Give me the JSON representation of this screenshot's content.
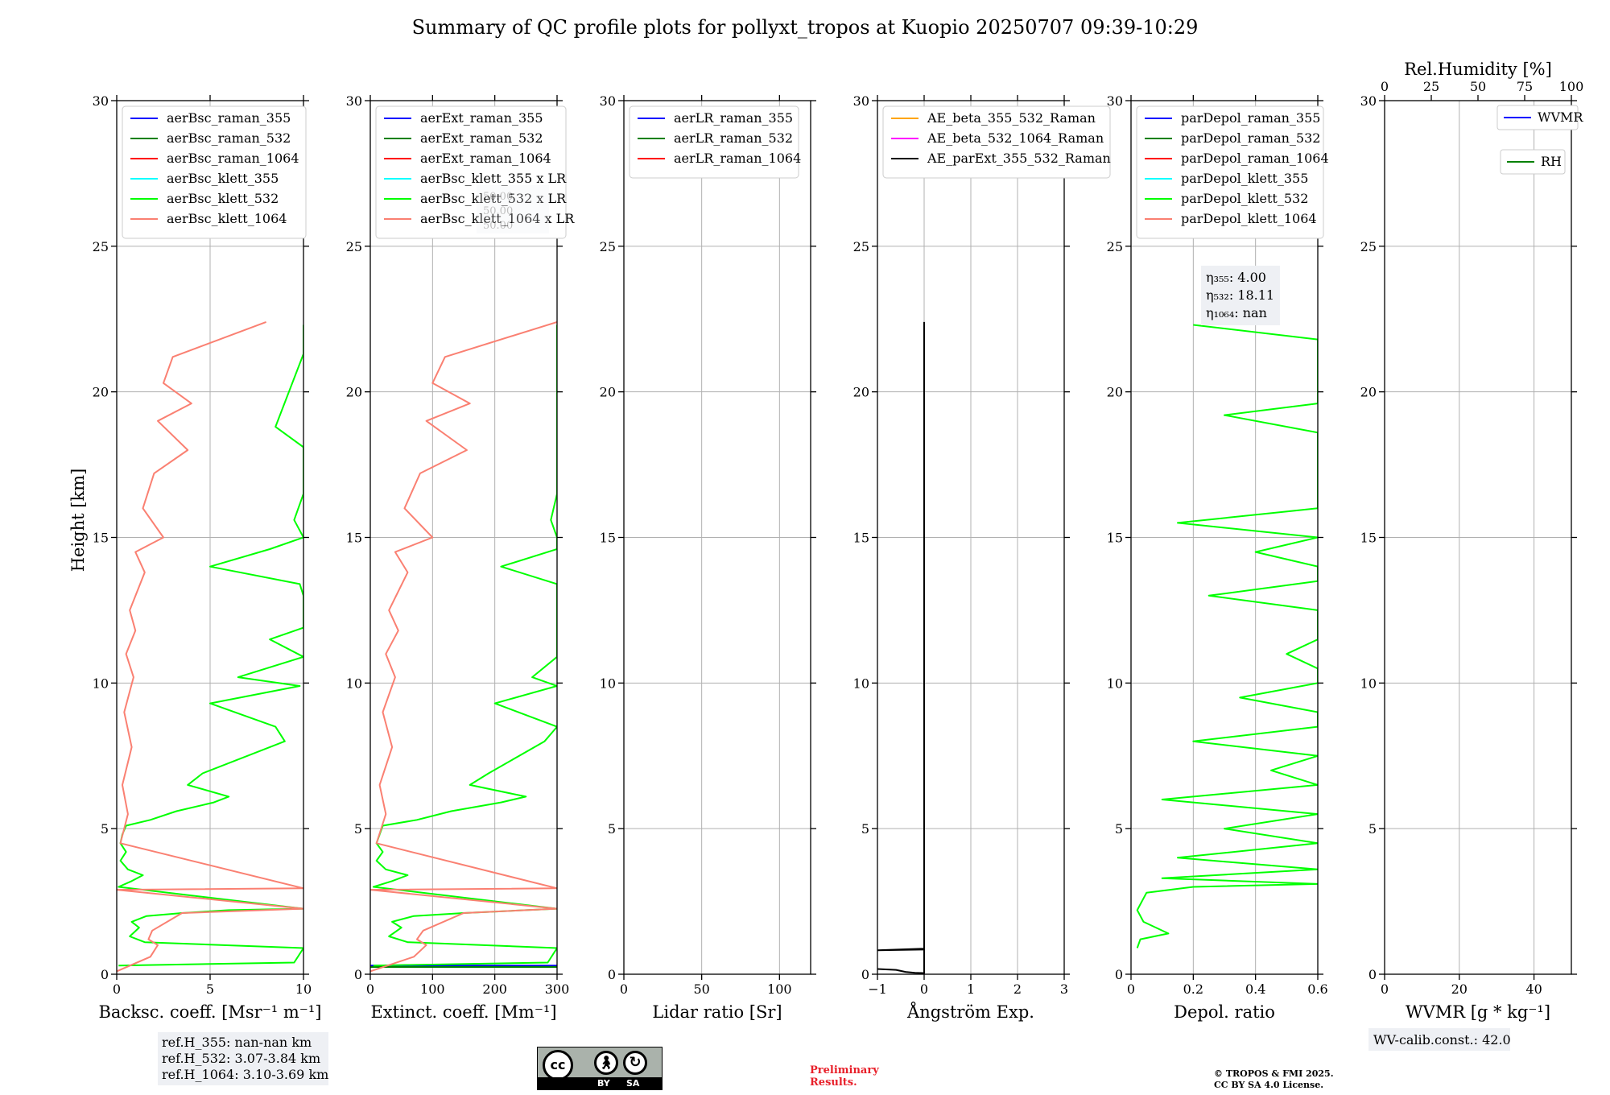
{
  "title": "Summary of QC profile plots for pollyxt_tropos at Kuopio 20250707 09:39-10:29",
  "ylabel": "Height [km]",
  "colors": {
    "raman_355": "#0000ff",
    "raman_532": "#008000",
    "raman_1064": "#ff0000",
    "klett_355": "#00ffff",
    "klett_532": "#00ff00",
    "klett_1064": "#fa8072",
    "ae_1": "#ffa500",
    "ae_2": "#ff00ff",
    "ae_3": "#000000",
    "wvmr": "#0000ff",
    "rh": "#008000",
    "grid": "#b0b0b0",
    "annot_bg": "#eef0f4"
  },
  "chart_data": [
    {
      "type": "line",
      "xlabel": "Backsc. coeff. [Msr⁻¹ m⁻¹]",
      "ylabel": "Height [km]",
      "xlim": [
        0,
        10
      ],
      "ylim": [
        0,
        30
      ],
      "grid": true,
      "legend": "top",
      "xticks": [
        0,
        5,
        10
      ],
      "yticks": [
        0,
        5,
        10,
        15,
        20,
        25,
        30
      ],
      "series": [
        {
          "name": "aerBsc_raman_355",
          "color": "#0000ff",
          "x": [],
          "y": []
        },
        {
          "name": "aerBsc_raman_532",
          "color": "#008000",
          "x": [],
          "y": []
        },
        {
          "name": "aerBsc_raman_1064",
          "color": "#ff0000",
          "x": [],
          "y": []
        },
        {
          "name": "aerBsc_klett_355",
          "color": "#00ffff",
          "x": [],
          "y": []
        },
        {
          "name": "aerBsc_klett_532",
          "color": "#00ff00",
          "x": [
            0.1,
            9.5,
            10,
            1.5,
            0.7,
            1.2,
            0.8,
            1.6,
            3.5,
            6.0,
            10.0,
            0.1,
            0.8,
            1.4,
            0.6,
            0.2,
            0.5,
            0.2,
            0.3,
            0.5,
            1.8,
            3.2,
            5.2,
            6.0,
            3.8,
            4.6,
            9.0,
            8.5,
            5.0,
            9.8,
            6.5,
            10.0,
            8.2,
            10.0,
            10.0,
            10.0,
            9.8,
            5.0,
            8.2,
            10.0,
            9.5,
            10.0,
            10.0,
            10.0,
            8.5,
            10.0,
            10.0
          ],
          "y": [
            0.3,
            0.4,
            0.9,
            1.1,
            1.3,
            1.6,
            1.8,
            2.0,
            2.1,
            2.2,
            2.25,
            3.0,
            3.2,
            3.4,
            3.6,
            3.9,
            4.2,
            4.5,
            4.8,
            5.1,
            5.3,
            5.6,
            5.9,
            6.1,
            6.5,
            6.9,
            8.0,
            8.5,
            9.3,
            9.9,
            10.2,
            10.9,
            11.5,
            11.9,
            12.4,
            13.0,
            13.4,
            14.0,
            14.6,
            15.0,
            15.6,
            16.5,
            17.0,
            18.1,
            18.8,
            21.3,
            22.3
          ]
        },
        {
          "name": "aerBsc_klett_1064",
          "color": "#fa8072",
          "x": [
            0.0,
            1.8,
            2.2,
            1.7,
            1.9,
            3.5,
            10.0,
            0.0,
            10.0,
            0.2,
            0.6,
            0.3,
            0.8,
            0.4,
            0.9,
            0.5,
            1.0,
            0.7,
            1.5,
            1.0,
            2.5,
            1.4,
            2.0,
            3.8,
            2.2,
            4.0,
            2.5,
            3.0,
            8.0
          ],
          "y": [
            0.1,
            0.6,
            1.0,
            1.2,
            1.5,
            2.1,
            2.25,
            2.9,
            2.95,
            4.5,
            5.5,
            6.5,
            7.8,
            9.0,
            10.2,
            11.0,
            11.8,
            12.5,
            13.8,
            14.5,
            15.0,
            16.0,
            17.2,
            18.0,
            19.0,
            19.6,
            20.3,
            21.2,
            22.4
          ]
        }
      ]
    },
    {
      "type": "line",
      "xlabel": "Extinct. coeff. [Mm⁻¹]",
      "xlim": [
        0,
        300
      ],
      "ylim": [
        0,
        30
      ],
      "grid": true,
      "legend": "top",
      "xticks": [
        0,
        100,
        200,
        300
      ],
      "yticks": [
        0,
        5,
        10,
        15,
        20,
        25,
        30
      ],
      "series": [
        {
          "name": "aerExt_raman_355",
          "color": "#0000ff",
          "x": [
            0,
            300
          ],
          "y": [
            0.3,
            0.3
          ]
        },
        {
          "name": "aerExt_raman_532",
          "color": "#008000",
          "x": [
            0,
            300
          ],
          "y": [
            0.25,
            0.25
          ]
        },
        {
          "name": "aerExt_raman_1064",
          "color": "#ff0000",
          "x": [],
          "y": []
        },
        {
          "name": "aerBsc_klett_355 x LR",
          "color": "#00ffff",
          "x": [],
          "y": []
        },
        {
          "name": "aerBsc_klett_532 x LR",
          "color": "#00ff00",
          "x": [
            5,
            285,
            300,
            60,
            30,
            50,
            35,
            70,
            150,
            250,
            300,
            5,
            35,
            60,
            25,
            10,
            20,
            10,
            15,
            20,
            75,
            130,
            210,
            250,
            160,
            190,
            280,
            300,
            200,
            300,
            260,
            300,
            300,
            300,
            300,
            300,
            300,
            210,
            300,
            300,
            290,
            300,
            300,
            300,
            300,
            300,
            300
          ],
          "y": [
            0.3,
            0.4,
            0.9,
            1.1,
            1.3,
            1.6,
            1.8,
            2.0,
            2.1,
            2.2,
            2.25,
            3.0,
            3.2,
            3.4,
            3.6,
            3.9,
            4.2,
            4.5,
            4.8,
            5.1,
            5.3,
            5.6,
            5.9,
            6.1,
            6.5,
            6.9,
            8.0,
            8.5,
            9.3,
            9.9,
            10.2,
            10.9,
            11.5,
            11.9,
            12.4,
            13.0,
            13.4,
            14.0,
            14.6,
            15.0,
            15.6,
            16.5,
            17.0,
            18.1,
            18.8,
            21.3,
            22.3
          ]
        },
        {
          "name": "aerBsc_klett_1064 x LR",
          "color": "#fa8072",
          "x": [
            0,
            70,
            90,
            75,
            85,
            150,
            300,
            0,
            300,
            10,
            25,
            15,
            35,
            20,
            40,
            25,
            45,
            30,
            60,
            40,
            100,
            55,
            80,
            155,
            90,
            160,
            100,
            120,
            300
          ],
          "y": [
            0.1,
            0.6,
            1.0,
            1.2,
            1.5,
            2.1,
            2.25,
            2.9,
            2.95,
            4.5,
            5.5,
            6.5,
            7.8,
            9.0,
            10.2,
            11.0,
            11.8,
            12.5,
            13.8,
            14.5,
            15.0,
            16.0,
            17.2,
            18.0,
            19.0,
            19.6,
            20.3,
            21.2,
            22.4
          ]
        }
      ]
    },
    {
      "type": "line",
      "xlabel": "Lidar ratio [Sr]",
      "xlim": [
        0,
        120
      ],
      "ylim": [
        0,
        30
      ],
      "grid": true,
      "legend": "top",
      "xticks": [
        0,
        50,
        100
      ],
      "yticks": [
        0,
        5,
        10,
        15,
        20,
        25,
        30
      ],
      "series": [
        {
          "name": "aerLR_raman_355",
          "color": "#0000ff",
          "x": [],
          "y": []
        },
        {
          "name": "aerLR_raman_532",
          "color": "#008000",
          "x": [],
          "y": []
        },
        {
          "name": "aerLR_raman_1064",
          "color": "#ff0000",
          "x": [],
          "y": []
        }
      ]
    },
    {
      "type": "line",
      "xlabel": "Ångström Exp.",
      "xlim": [
        -1,
        3
      ],
      "ylim": [
        0,
        30
      ],
      "grid": true,
      "legend": "top",
      "xticks": [
        -1,
        0,
        1,
        2,
        3
      ],
      "yticks": [
        0,
        5,
        10,
        15,
        20,
        25,
        30
      ],
      "series": [
        {
          "name": "AE_beta_355_532_Raman",
          "color": "#ffa500",
          "x": [],
          "y": []
        },
        {
          "name": "AE_beta_532_1064_Raman",
          "color": "#ff00ff",
          "x": [
            0,
            0
          ],
          "y": [
            0.0,
            0.85
          ]
        },
        {
          "name": "AE_parExt_355_532_Raman",
          "color": "#000000",
          "x": [
            -1.0,
            -0.6,
            -0.4,
            -0.2,
            0.0,
            0.0,
            -1.0,
            0.0,
            0.0
          ],
          "y": [
            0.18,
            0.15,
            0.08,
            0.05,
            0.04,
            0.85,
            0.82,
            0.88,
            22.4
          ]
        }
      ]
    },
    {
      "type": "line",
      "xlabel": "Depol. ratio",
      "xlim": [
        0.0,
        0.6
      ],
      "ylim": [
        0,
        30
      ],
      "grid": true,
      "legend": "top",
      "xticks": [
        0.0,
        0.2,
        0.4,
        0.6
      ],
      "yticks": [
        0,
        5,
        10,
        15,
        20,
        25,
        30
      ],
      "series": [
        {
          "name": "parDepol_raman_355",
          "color": "#0000ff",
          "x": [],
          "y": []
        },
        {
          "name": "parDepol_raman_532",
          "color": "#008000",
          "x": [],
          "y": []
        },
        {
          "name": "parDepol_raman_1064",
          "color": "#ff0000",
          "x": [],
          "y": []
        },
        {
          "name": "parDepol_klett_355",
          "color": "#00ffff",
          "x": [],
          "y": []
        },
        {
          "name": "parDepol_klett_532",
          "color": "#00ff00",
          "x": [
            0.02,
            0.03,
            0.12,
            0.04,
            0.02,
            0.05,
            0.2,
            0.6,
            0.1,
            0.6,
            0.15,
            0.6,
            0.3,
            0.6,
            0.1,
            0.6,
            0.45,
            0.6,
            0.2,
            0.6,
            0.6,
            0.35,
            0.6,
            0.6,
            0.5,
            0.6,
            0.6,
            0.6,
            0.25,
            0.6,
            0.6,
            0.4,
            0.6,
            0.15,
            0.6,
            0.6,
            0.6,
            0.6,
            0.6,
            0.3,
            0.6,
            0.6,
            0.6,
            0.6,
            0.6,
            0.6,
            0.2
          ],
          "y": [
            0.9,
            1.2,
            1.4,
            1.8,
            2.2,
            2.8,
            3.0,
            3.1,
            3.3,
            3.6,
            4.0,
            4.5,
            5.0,
            5.5,
            6.0,
            6.5,
            7.0,
            7.5,
            8.0,
            8.5,
            9.0,
            9.5,
            10.0,
            10.5,
            11.0,
            11.5,
            12.0,
            12.5,
            13.0,
            13.5,
            14.0,
            14.5,
            15.0,
            15.5,
            16.0,
            16.5,
            17.0,
            18.0,
            18.6,
            19.2,
            19.6,
            20.2,
            20.8,
            21.0,
            21.4,
            21.8,
            22.3
          ]
        },
        {
          "name": "parDepol_klett_1064",
          "color": "#fa8072",
          "x": [],
          "y": []
        }
      ]
    },
    {
      "type": "line",
      "xlabel": "WVMR [g * kg⁻¹]",
      "x2label": "Rel.Humidity [%]",
      "xlim": [
        0,
        50
      ],
      "x2lim": [
        0,
        100
      ],
      "ylim": [
        0,
        30
      ],
      "grid": true,
      "legend": "top-right",
      "xticks": [
        0,
        20,
        40
      ],
      "x2ticks": [
        0,
        25,
        50,
        75,
        100
      ],
      "yticks": [
        0,
        5,
        10,
        15,
        20,
        25,
        30
      ],
      "series": [
        {
          "name": "WVMR",
          "color": "#0000ff",
          "x": [],
          "y": []
        },
        {
          "name": "RH",
          "color": "#008000",
          "x": [],
          "y": []
        }
      ]
    }
  ],
  "annotations": {
    "eta_355": "η₃₅₅: 4.00",
    "eta_532": "η₅₃₂: 18.11",
    "eta_1064": "η₁₀₆₄: nan",
    "refH_355": "ref.H_355: nan-nan km",
    "refH_532": "ref.H_532: 3.07-3.84 km",
    "refH_1064": "ref.H_1064: 3.10-3.69 km",
    "wv_calib": "WV-calib.const.: 42.0",
    "hidden_lr_line1": "50.00",
    "hidden_lr_line2": "50.00",
    "hidden_lr_line3": "50.00"
  },
  "footer": {
    "cc_letters": "cc",
    "cc_by": "BY",
    "cc_sa": "SA",
    "preliminary_line1": "Preliminary",
    "preliminary_line2": "Results.",
    "copyright_line1": "© TROPOS & FMI 2025.",
    "copyright_line2": "CC BY SA 4.0 License."
  }
}
